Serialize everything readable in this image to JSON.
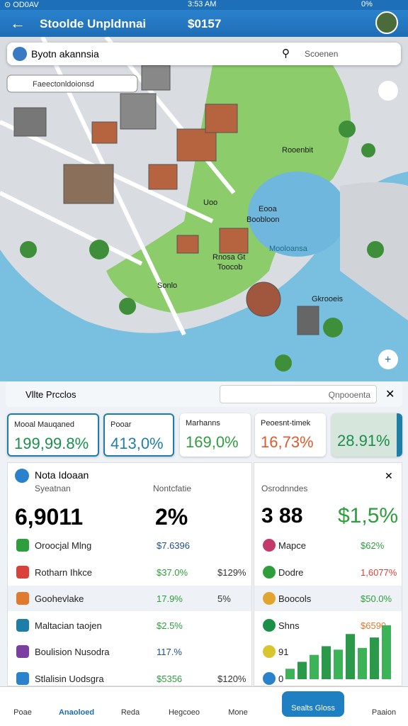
{
  "status_bar": {
    "carrier": "⊙ OD0AV",
    "time": "3:53 AM",
    "battery": "0%"
  },
  "header": {
    "title": "Stoolde Unpldnnai",
    "amount": "$0157"
  },
  "search": {
    "location": "Byotn akannsia",
    "placeholder": "Scoenen"
  },
  "map": {
    "chip": "Faeectonldoionsd",
    "labels": [
      "Rooenbit",
      "Uoo",
      "Eooa",
      "Boobloon",
      "Mooloansa",
      "Rnosa Gt",
      "Toocob",
      "Sonlo",
      "Gkrooeis"
    ]
  },
  "panel": {
    "title": "Vllte Prcclos",
    "input": "Qnpooenta"
  },
  "metric_cards": [
    {
      "label": "Mooal Mauqaned",
      "value": "199,99.8%"
    },
    {
      "label": "Pooar",
      "value": "413,0%"
    },
    {
      "label": "Marhanns",
      "value": "169,0%"
    },
    {
      "label": "Peoesnt-timek",
      "value": "16,73%"
    },
    {
      "value": "28.91%"
    }
  ],
  "stats": {
    "title": "Nota Idoaan",
    "subtitle": "Syeatnan",
    "column": "Nontcfatie",
    "big1": "6,9011",
    "big2": "2%",
    "rows": [
      {
        "name": "Oroocjal Mlng",
        "a": "$7.6396"
      },
      {
        "name": "Rotharn Ihkce",
        "a": "$37.0%",
        "b": "$129%"
      },
      {
        "name": "Goohevlake",
        "a": "17.9%",
        "b": "5%"
      },
      {
        "name": "Maltacian taojen",
        "a": "$2.5%"
      },
      {
        "name": "Boulision Nusodra",
        "a": "117.%"
      },
      {
        "name": "Stlalisin Uodsgra",
        "a": "$5356",
        "b": "$120%"
      }
    ]
  },
  "side": {
    "title": "Osrodnndes",
    "big1": "3 88",
    "big2": "$1,5%",
    "rows": [
      {
        "name": "Mapce",
        "a": "$62%"
      },
      {
        "name": "Dodre",
        "a": "1,6077%"
      },
      {
        "name": "Boocols",
        "a": "$50.0%"
      },
      {
        "name": "Shns",
        "a": "$6590"
      },
      {
        "name": "91"
      },
      {
        "name": "0"
      }
    ],
    "bars": [
      12,
      20,
      28,
      38,
      34,
      52,
      36,
      48,
      62
    ]
  },
  "nav": [
    "Poae",
    "Anaoloed",
    "Reda",
    "Hegcoeo",
    "Mone",
    "Sealts Gloss",
    "Paaion"
  ]
}
